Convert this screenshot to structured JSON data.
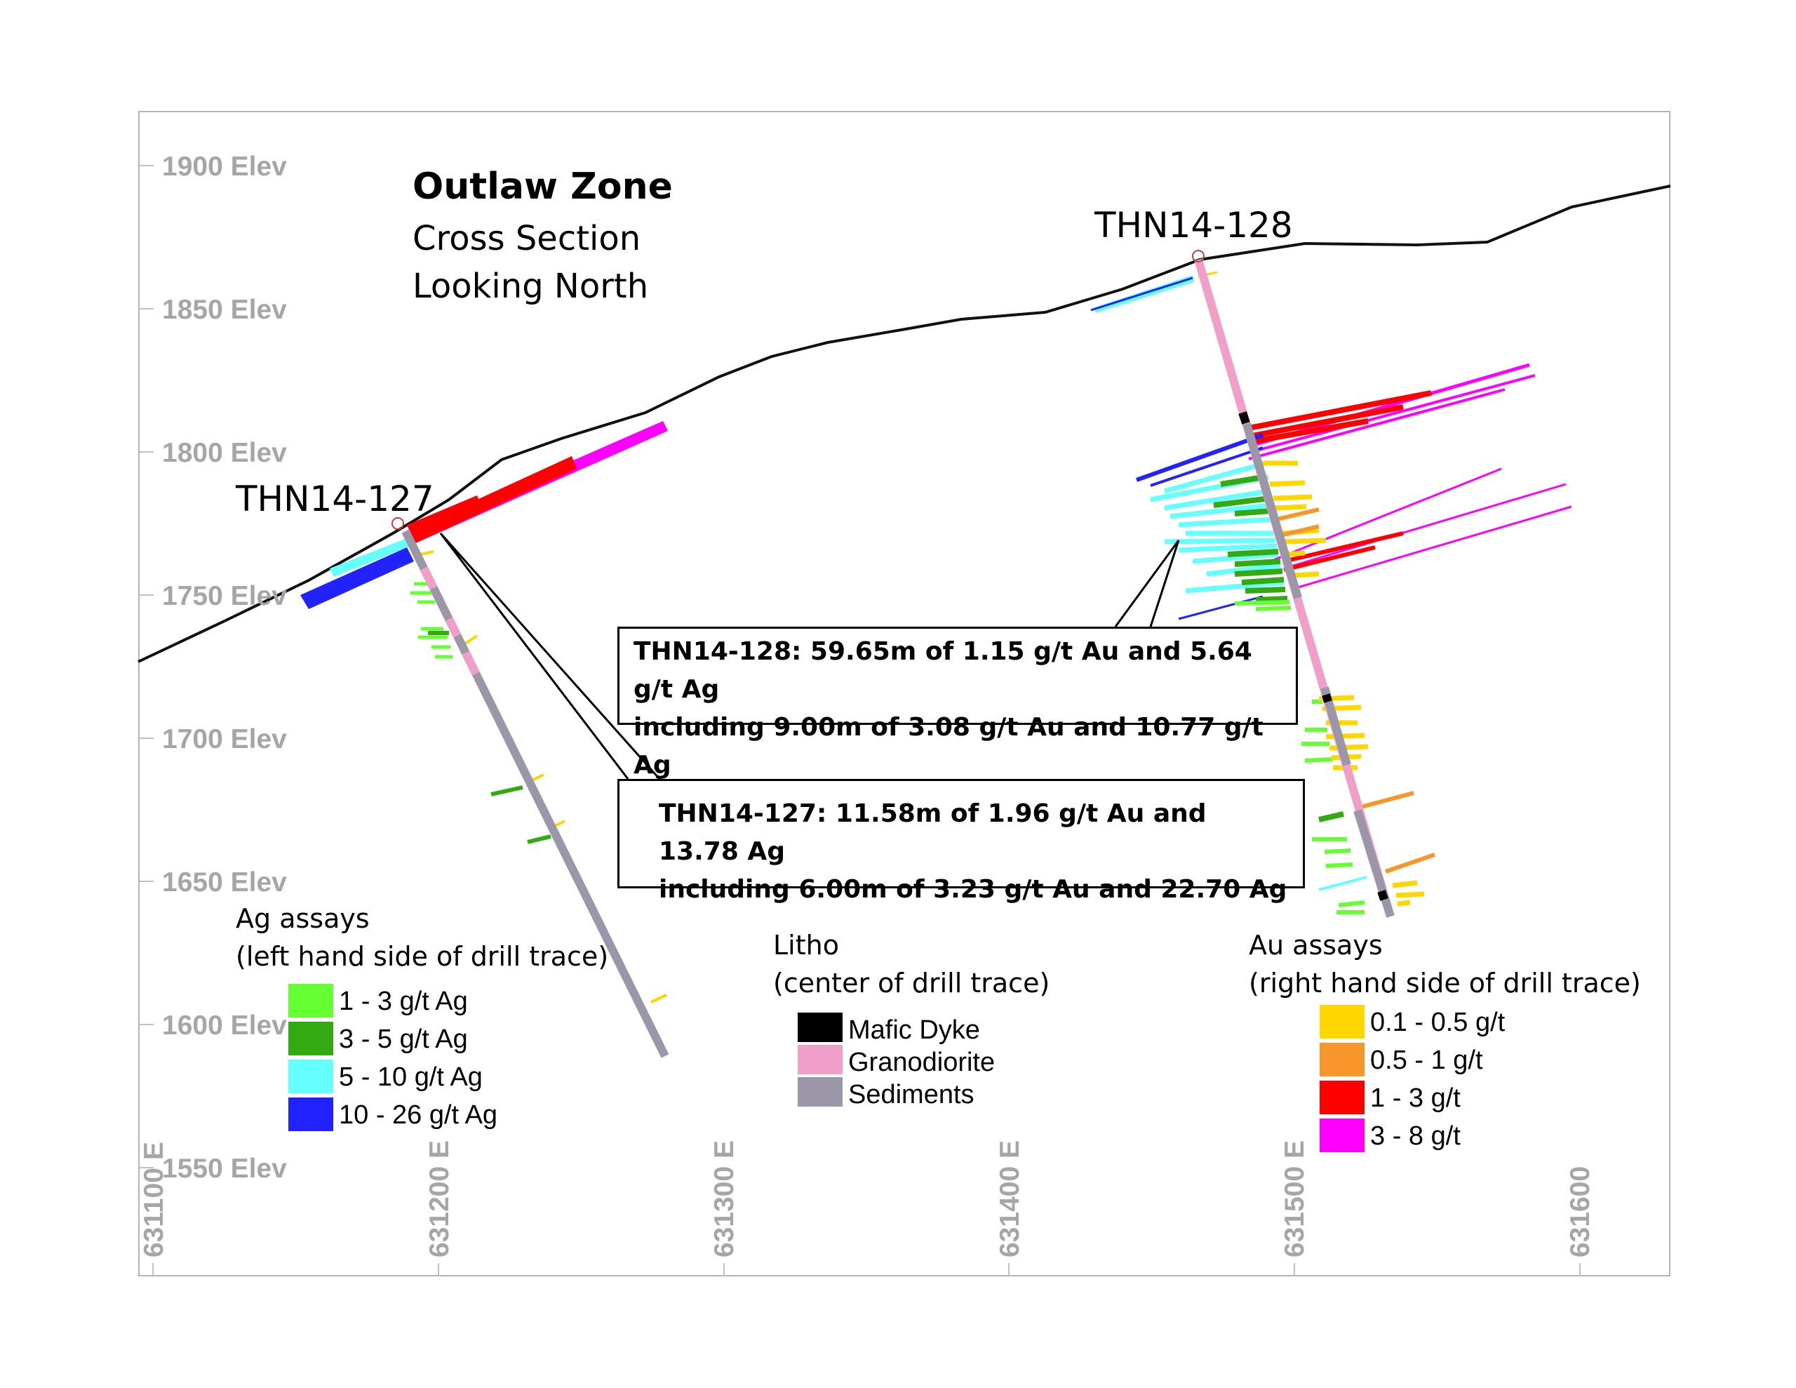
{
  "title": "Outlaw Zone",
  "subtitle_line1": "Cross Section",
  "subtitle_line2": "Looking North",
  "elevation_labels": [
    "1900 Elev",
    "1850 Elev",
    "1800 Elev",
    "1750 Elev",
    "1700 Elev",
    "1650 Elev",
    "1600 Elev",
    "1550 Elev"
  ],
  "easting_labels": [
    "631100 E",
    "631200 E",
    "631300 E",
    "631400 E",
    "631500 E",
    "631600"
  ],
  "drill_holes": [
    {
      "name": "THN14-127"
    },
    {
      "name": "THN14-128"
    }
  ],
  "callouts": {
    "thn14_128": {
      "line1": "THN14-128: 59.65m of 1.15 g/t Au and 5.64 g/t Ag",
      "line2": "including 9.00m of 3.08 g/t Au and 10.77 g/t Ag"
    },
    "thn14_127": {
      "line1": "THN14-127: 11.58m of 1.96 g/t Au and 13.78 Ag",
      "line2": "including 6.00m of 3.23 g/t Au and 22.70 Ag"
    }
  },
  "legends": {
    "ag": {
      "title_line1": "Ag assays",
      "title_line2": "(left hand side of drill trace)",
      "items": [
        {
          "label": "1 - 3 g/t Ag",
          "color": "#66ff33"
        },
        {
          "label": "3 - 5 g/t Ag",
          "color": "#33aa11"
        },
        {
          "label": "5 - 10 g/t Ag",
          "color": "#66ffff"
        },
        {
          "label": "10 - 26 g/t Ag",
          "color": "#2222ff"
        }
      ]
    },
    "litho": {
      "title_line1": "Litho",
      "title_line2": "(center of drill trace)",
      "items": [
        {
          "label": "Mafic Dyke",
          "color": "#000000"
        },
        {
          "label": "Granodiorite",
          "color": "#f0a0c8"
        },
        {
          "label": "Sediments",
          "color": "#9b97a8"
        }
      ]
    },
    "au": {
      "title_line1": "Au assays",
      "title_line2": "(right hand side of drill trace)",
      "items": [
        {
          "label": "0.1 - 0.5 g/t",
          "color": "#ffd700"
        },
        {
          "label": "0.5 - 1 g/t",
          "color": "#f7962a"
        },
        {
          "label": "1 - 3 g/t",
          "color": "#ff0000"
        },
        {
          "label": "3 - 8 g/t",
          "color": "#ff00ff"
        }
      ]
    }
  }
}
